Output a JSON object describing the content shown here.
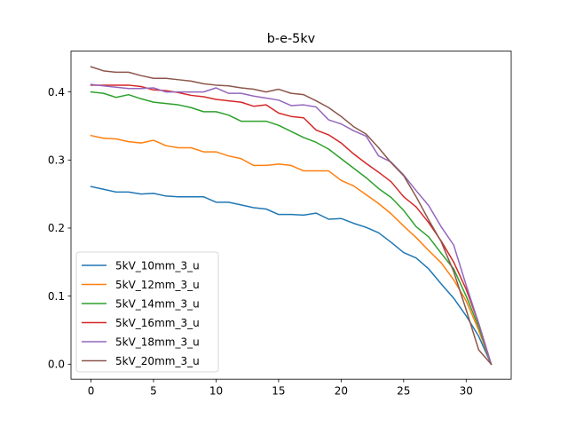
{
  "chart_data": {
    "type": "line",
    "title": "b-e-5kv",
    "xlabel": "",
    "ylabel": "",
    "xlim": [
      -1.6,
      33.6
    ],
    "ylim": [
      -0.022,
      0.46
    ],
    "xticks": [
      0,
      5,
      10,
      15,
      20,
      25,
      30
    ],
    "xtick_labels": [
      "0",
      "5",
      "10",
      "15",
      "20",
      "25",
      "30"
    ],
    "yticks": [
      0.0,
      0.1,
      0.2,
      0.3,
      0.4
    ],
    "ytick_labels": [
      "0.0",
      "0.1",
      "0.2",
      "0.3",
      "0.4"
    ],
    "grid": false,
    "legend_position": "lower-left",
    "x": [
      0,
      1,
      2,
      3,
      4,
      5,
      6,
      7,
      8,
      9,
      10,
      11,
      12,
      13,
      14,
      15,
      16,
      17,
      18,
      19,
      20,
      21,
      22,
      23,
      24,
      25,
      26,
      27,
      28,
      29,
      30,
      31,
      32
    ],
    "series": [
      {
        "name": "5kV_10mm_3_u",
        "color": "#1f77b4",
        "values": [
          0.261,
          0.257,
          0.253,
          0.253,
          0.25,
          0.251,
          0.247,
          0.246,
          0.246,
          0.246,
          0.238,
          0.238,
          0.234,
          0.23,
          0.228,
          0.22,
          0.22,
          0.219,
          0.222,
          0.213,
          0.214,
          0.207,
          0.201,
          0.193,
          0.179,
          0.164,
          0.156,
          0.14,
          0.118,
          0.097,
          0.071,
          0.041,
          0.0
        ]
      },
      {
        "name": "5kV_12mm_3_u",
        "color": "#ff7f0e",
        "values": [
          0.336,
          0.332,
          0.331,
          0.327,
          0.325,
          0.329,
          0.321,
          0.318,
          0.318,
          0.312,
          0.312,
          0.306,
          0.302,
          0.292,
          0.292,
          0.294,
          0.292,
          0.284,
          0.284,
          0.284,
          0.27,
          0.262,
          0.249,
          0.236,
          0.221,
          0.203,
          0.186,
          0.167,
          0.149,
          0.124,
          0.093,
          0.05,
          0.0
        ]
      },
      {
        "name": "5kV_14mm_3_u",
        "color": "#2ca02c",
        "values": [
          0.4,
          0.398,
          0.392,
          0.396,
          0.39,
          0.385,
          0.383,
          0.381,
          0.377,
          0.371,
          0.371,
          0.366,
          0.357,
          0.357,
          0.357,
          0.351,
          0.342,
          0.333,
          0.326,
          0.316,
          0.302,
          0.288,
          0.274,
          0.258,
          0.245,
          0.226,
          0.202,
          0.187,
          0.163,
          0.14,
          0.1,
          0.055,
          0.0
        ]
      },
      {
        "name": "5kV_16mm_3_u",
        "color": "#d62728",
        "values": [
          0.41,
          0.41,
          0.41,
          0.41,
          0.408,
          0.403,
          0.402,
          0.399,
          0.395,
          0.393,
          0.389,
          0.387,
          0.385,
          0.379,
          0.381,
          0.369,
          0.364,
          0.362,
          0.344,
          0.337,
          0.325,
          0.309,
          0.295,
          0.282,
          0.268,
          0.246,
          0.231,
          0.208,
          0.181,
          0.15,
          0.11,
          0.06,
          0.0
        ]
      },
      {
        "name": "5kV_18mm_3_u",
        "color": "#9467bd",
        "values": [
          0.411,
          0.409,
          0.407,
          0.405,
          0.405,
          0.406,
          0.4,
          0.4,
          0.4,
          0.4,
          0.406,
          0.398,
          0.398,
          0.394,
          0.391,
          0.388,
          0.38,
          0.381,
          0.378,
          0.359,
          0.353,
          0.343,
          0.335,
          0.306,
          0.297,
          0.278,
          0.255,
          0.233,
          0.202,
          0.175,
          0.116,
          0.06,
          0.0
        ]
      },
      {
        "name": "5kV_20mm_3_u",
        "color": "#8c564b",
        "values": [
          0.437,
          0.431,
          0.429,
          0.429,
          0.424,
          0.42,
          0.42,
          0.418,
          0.416,
          0.412,
          0.41,
          0.409,
          0.406,
          0.404,
          0.4,
          0.404,
          0.398,
          0.396,
          0.387,
          0.377,
          0.364,
          0.349,
          0.338,
          0.318,
          0.296,
          0.277,
          0.246,
          0.212,
          0.18,
          0.136,
          0.08,
          0.021,
          0.0
        ]
      }
    ]
  }
}
